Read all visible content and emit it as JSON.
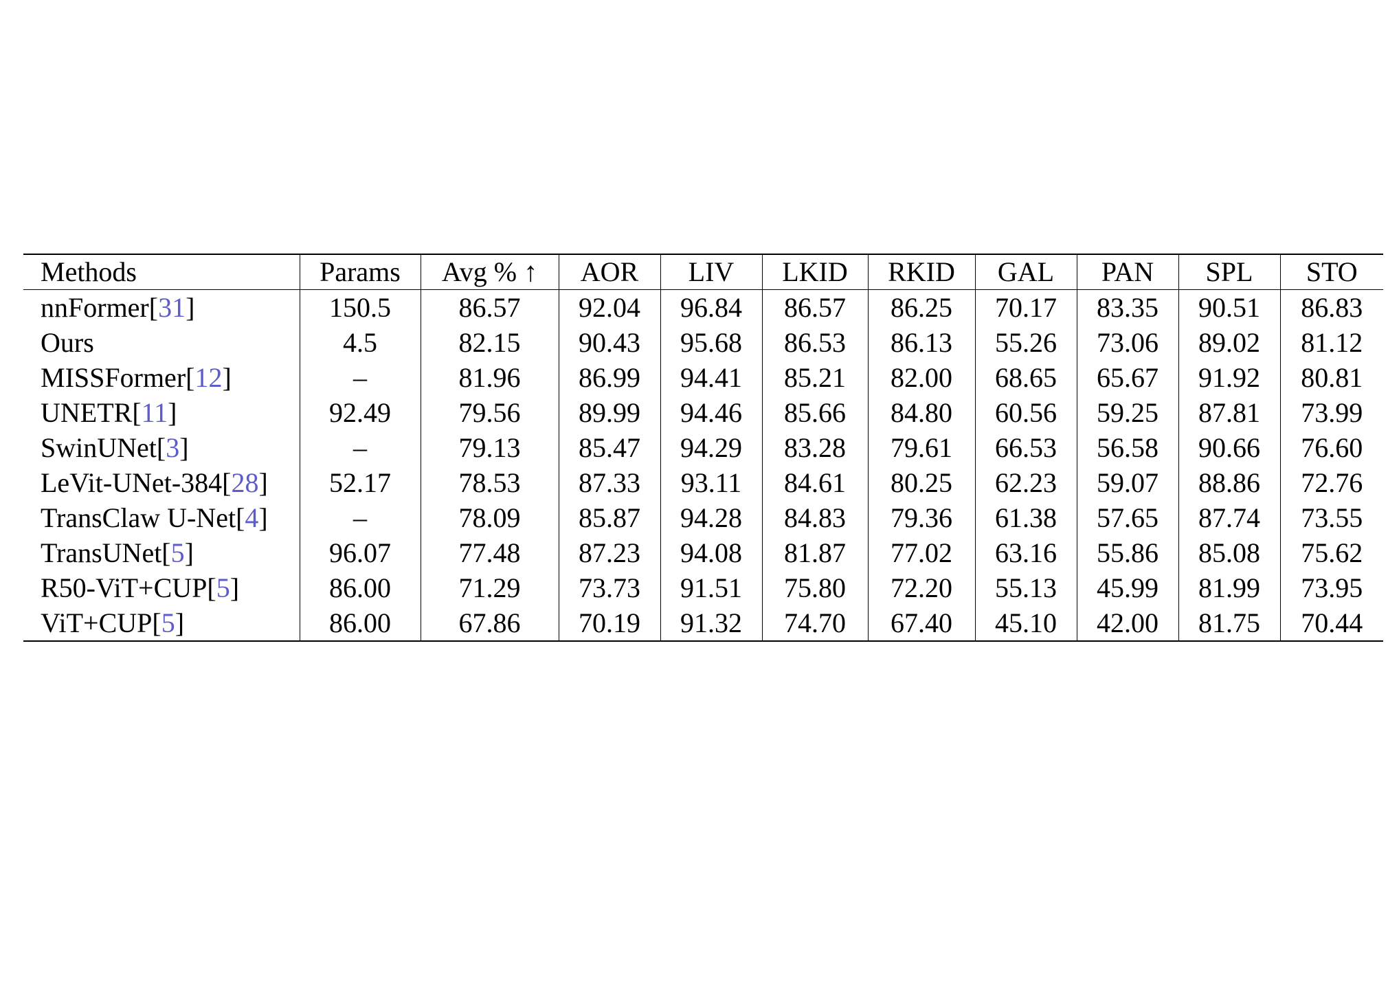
{
  "table": {
    "columns": [
      "Methods",
      "Params",
      "Avg % ↑",
      "AOR",
      "LIV",
      "LKID",
      "RKID",
      "GAL",
      "PAN",
      "SPL",
      "STO"
    ],
    "rows": [
      {
        "name": "nnFormer[",
        "cite": "31",
        "close": "]",
        "bold": false,
        "values": [
          "150.5",
          "86.57",
          "92.04",
          "96.84",
          "86.57",
          "86.25",
          "70.17",
          "83.35",
          "90.51",
          "86.83"
        ]
      },
      {
        "name": "Ours",
        "cite": "",
        "close": "",
        "bold": true,
        "values": [
          "4.5",
          "82.15",
          "90.43",
          "95.68",
          "86.53",
          "86.13",
          "55.26",
          "73.06",
          "89.02",
          "81.12"
        ]
      },
      {
        "name": "MISSFormer[",
        "cite": "12",
        "close": "]",
        "bold": false,
        "values": [
          "–",
          "81.96",
          "86.99",
          "94.41",
          "85.21",
          "82.00",
          "68.65",
          "65.67",
          "91.92",
          "80.81"
        ]
      },
      {
        "name": "UNETR[",
        "cite": "11",
        "close": "]",
        "bold": false,
        "values": [
          "92.49",
          "79.56",
          "89.99",
          "94.46",
          "85.66",
          "84.80",
          "60.56",
          "59.25",
          "87.81",
          "73.99"
        ]
      },
      {
        "name": "SwinUNet[",
        "cite": "3",
        "close": "]",
        "bold": false,
        "values": [
          "–",
          "79.13",
          "85.47",
          "94.29",
          "83.28",
          "79.61",
          "66.53",
          "56.58",
          "90.66",
          "76.60"
        ]
      },
      {
        "name": "LeVit-UNet-384[",
        "cite": "28",
        "close": "]",
        "bold": false,
        "values": [
          "52.17",
          "78.53",
          "87.33",
          "93.11",
          "84.61",
          "80.25",
          "62.23",
          "59.07",
          "88.86",
          "72.76"
        ]
      },
      {
        "name": "TransClaw U-Net[",
        "cite": "4",
        "close": "]",
        "bold": false,
        "values": [
          "–",
          "78.09",
          "85.87",
          "94.28",
          "84.83",
          "79.36",
          "61.38",
          "57.65",
          "87.74",
          "73.55"
        ]
      },
      {
        "name": "TransUNet[",
        "cite": "5",
        "close": "]",
        "bold": false,
        "values": [
          "96.07",
          "77.48",
          "87.23",
          "94.08",
          "81.87",
          "77.02",
          "63.16",
          "55.86",
          "85.08",
          "75.62"
        ]
      },
      {
        "name": "R50-ViT+CUP[",
        "cite": "5",
        "close": "]",
        "bold": false,
        "values": [
          "86.00",
          "71.29",
          "73.73",
          "91.51",
          "75.80",
          "72.20",
          "55.13",
          "45.99",
          "81.99",
          "73.95"
        ]
      },
      {
        "name": "ViT+CUP[",
        "cite": "5",
        "close": "]",
        "bold": false,
        "values": [
          "86.00",
          "67.86",
          "70.19",
          "91.32",
          "74.70",
          "67.40",
          "45.10",
          "42.00",
          "81.75",
          "70.44"
        ]
      }
    ]
  },
  "colors": {
    "text": "#000000",
    "citation": "#5c5ccc",
    "rule": "#000000"
  }
}
